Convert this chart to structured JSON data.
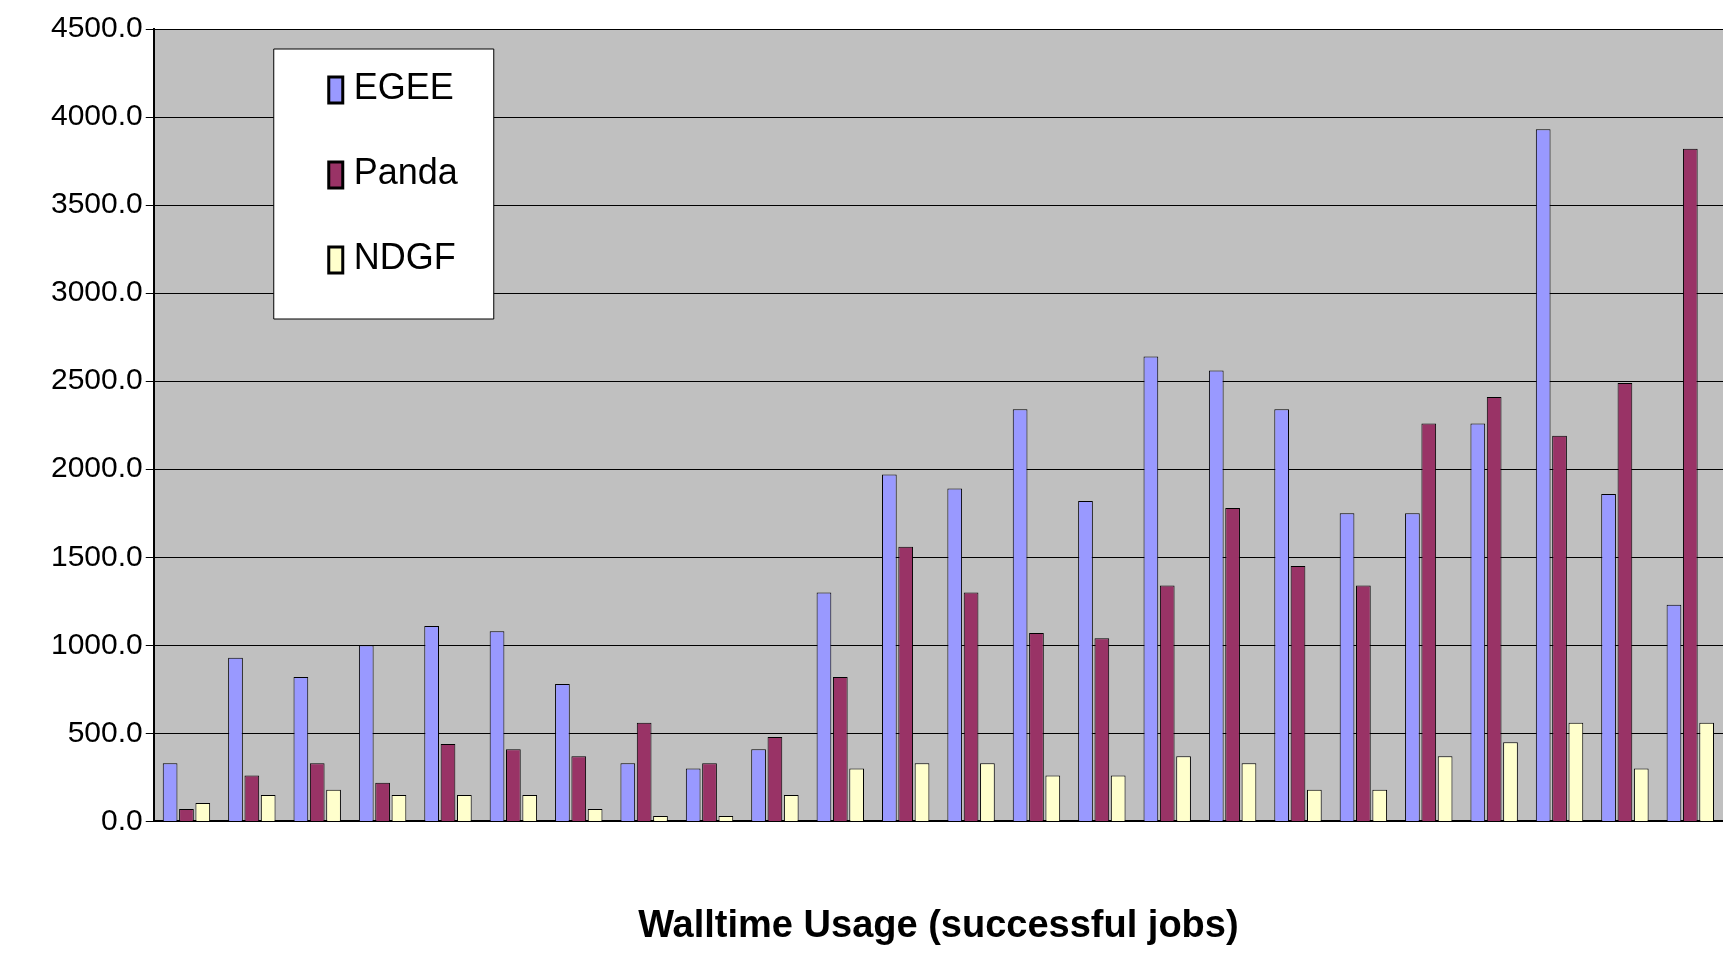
{
  "chart_data": {
    "type": "bar",
    "xlabel": "Walltime Usage (successful jobs)",
    "categories": [
      null,
      null,
      null,
      null,
      null,
      null,
      null,
      null,
      null,
      null,
      null,
      null,
      null,
      null,
      null,
      null,
      null,
      null,
      null,
      null,
      null,
      null,
      null,
      null
    ],
    "series": [
      {
        "name": "EGEE",
        "color": "#9999ff",
        "values": [
          330,
          930,
          820,
          1000,
          1110,
          1080,
          780,
          330,
          300,
          410,
          1300,
          1970,
          1890,
          2340,
          1820,
          2640,
          2560,
          2340,
          1750,
          1750,
          2260,
          3930,
          1860,
          1230
        ]
      },
      {
        "name": "Panda",
        "color": "#993366",
        "values": [
          70,
          260,
          330,
          220,
          440,
          410,
          370,
          560,
          330,
          480,
          820,
          1560,
          1300,
          1070,
          1040,
          1340,
          1780,
          1450,
          1340,
          2260,
          2410,
          2190,
          2490,
          3820
        ]
      },
      {
        "name": "NDGF",
        "color": "#ffffcc",
        "values": [
          105,
          150,
          180,
          150,
          150,
          150,
          70,
          30,
          30,
          150,
          300,
          330,
          330,
          260,
          260,
          370,
          330,
          180,
          180,
          370,
          450,
          560,
          300,
          560
        ]
      }
    ],
    "ylim": [
      0,
      4500
    ],
    "yticks": [
      {
        "value": 0,
        "label": "0.0"
      },
      {
        "value": 500,
        "label": "500.0"
      },
      {
        "value": 1000,
        "label": "1000.0"
      },
      {
        "value": 1500,
        "label": "1500.0"
      },
      {
        "value": 2000,
        "label": "2000.0"
      },
      {
        "value": 2500,
        "label": "2500.0"
      },
      {
        "value": 3000,
        "label": "3000.0"
      },
      {
        "value": 3500,
        "label": "3500.0"
      },
      {
        "value": 4000,
        "label": "4000.0"
      },
      {
        "value": 4500,
        "label": "4500.0"
      }
    ],
    "grid": "y",
    "legend": "top left"
  }
}
